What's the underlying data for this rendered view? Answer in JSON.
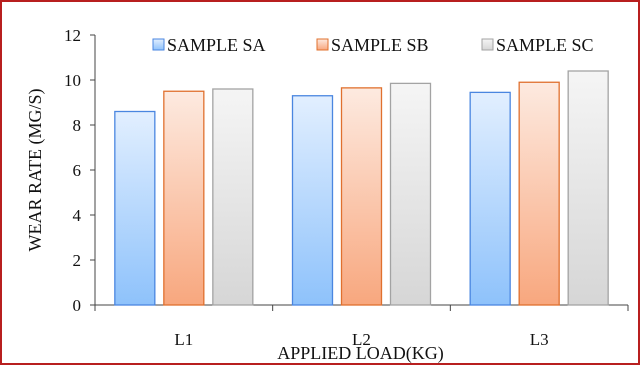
{
  "chart_data": {
    "type": "bar",
    "categories": [
      "L1",
      "L2",
      "L3"
    ],
    "series": [
      {
        "name": "SAMPLE SA",
        "values": [
          8.6,
          9.3,
          9.45
        ]
      },
      {
        "name": "SAMPLE SB",
        "values": [
          9.5,
          9.65,
          9.9
        ]
      },
      {
        "name": "SAMPLE SC",
        "values": [
          9.6,
          9.85,
          10.4
        ]
      }
    ],
    "xlabel": "APPLIED LOAD(KG)",
    "ylabel": "WEAR RATE (MG/S)",
    "ylim": [
      0,
      12
    ],
    "yticks": [
      0,
      2,
      4,
      6,
      8,
      10,
      12
    ],
    "grid": false,
    "legend_position": "top",
    "colors": {
      "SAMPLE SA": {
        "light": "#e2efff",
        "dark": "#8ec2fb",
        "stroke": "#4a86e0"
      },
      "SAMPLE SB": {
        "light": "#fdeae0",
        "dark": "#f8a77e",
        "stroke": "#e0702e"
      },
      "SAMPLE SC": {
        "light": "#f5f5f5",
        "dark": "#d6d6d6",
        "stroke": "#a3a3a3"
      }
    }
  }
}
